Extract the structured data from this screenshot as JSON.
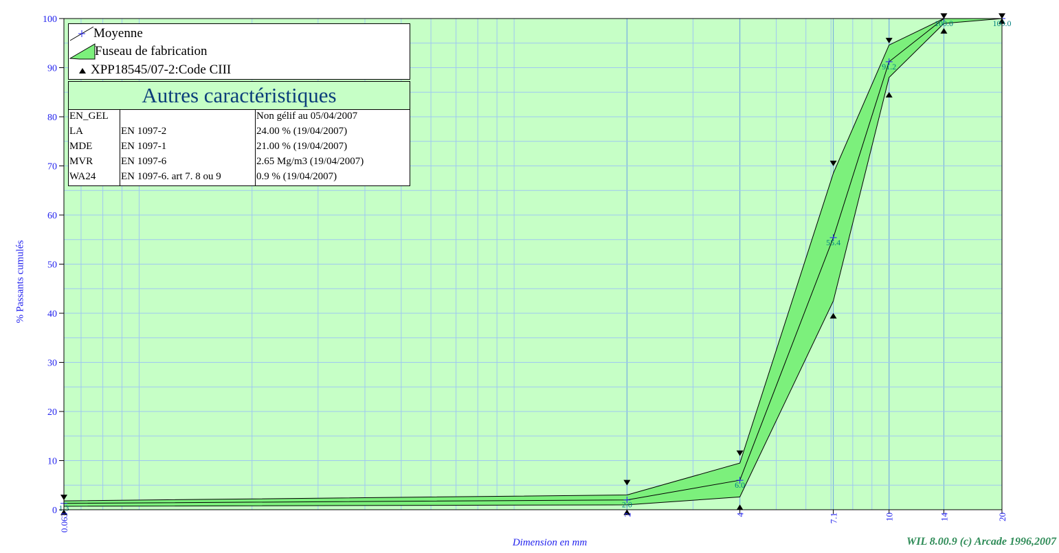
{
  "chart_data": {
    "type": "line",
    "title": "",
    "xlabel": "Dimension en mm",
    "ylabel": "% Passants cumulés",
    "x_scale": "log",
    "x_ticks": [
      "0.063",
      "2",
      "4",
      "7.1",
      "10",
      "14",
      "20"
    ],
    "x_tick_values": [
      0.063,
      2,
      4,
      7.1,
      10,
      14,
      20
    ],
    "y_ticks": [
      "0",
      "10",
      "20",
      "30",
      "40",
      "50",
      "60",
      "70",
      "80",
      "90",
      "100"
    ],
    "ylim": [
      0,
      100
    ],
    "grid": true,
    "background_color": "#c6ffc6",
    "band_color": "#7cf07c",
    "label_color": "#2222ee",
    "value_label_color": "#008080",
    "series": [
      {
        "name": "Moyenne",
        "x": [
          0.063,
          2,
          4,
          7.1,
          10,
          14,
          20
        ],
        "y": [
          1.3,
          2.0,
          6.0,
          55.4,
          91.2,
          100.0,
          100.0
        ],
        "labels": [
          "1.3",
          "2.0",
          "6.0",
          "55.4",
          "91.2",
          "100.0",
          "100.0"
        ]
      },
      {
        "name": "Fuseau de fabrication",
        "x": [
          0.063,
          2,
          4,
          7.1,
          10,
          14,
          20
        ],
        "upper": [
          1.8,
          3.0,
          9.5,
          68.5,
          94.6,
          100,
          100
        ],
        "lower": [
          0.7,
          1.0,
          2.6,
          42.5,
          88.0,
          99.0,
          100
        ]
      },
      {
        "name": "XPP18545/07-2:Code CIII",
        "x": [
          0.063,
          2,
          4,
          7.1,
          10,
          14,
          20
        ],
        "upper": [
          2.5,
          5.5,
          11.5,
          70.5,
          95.5,
          100.5,
          100.5
        ],
        "lower": [
          -0.5,
          -0.5,
          0.5,
          39.5,
          84.5,
          97.5,
          99.5
        ]
      }
    ],
    "legend_position": "top-left"
  },
  "legend": {
    "items": [
      {
        "label": "Moyenne"
      },
      {
        "label": "Fuseau de fabrication"
      },
      {
        "label": "XPP18545/07-2:Code CIII"
      }
    ]
  },
  "characteristics": {
    "title": "Autres caractéristiques",
    "rows": [
      [
        "EN_GEL",
        "",
        "Non gélif  au 05/04/2007"
      ],
      [
        "LA",
        "EN 1097-2",
        "24.00 %  (19/04/2007)"
      ],
      [
        "MDE",
        "EN 1097-1",
        "21.00 %  (19/04/2007)"
      ],
      [
        "MVR",
        "EN 1097-6",
        "2.65 Mg/m3  (19/04/2007)"
      ],
      [
        "WA24",
        "EN 1097-6. art 7. 8 ou 9",
        "0.9 %  (19/04/2007)"
      ]
    ]
  },
  "credit": "WIL 8.00.9 (c) Arcade 1996,2007"
}
